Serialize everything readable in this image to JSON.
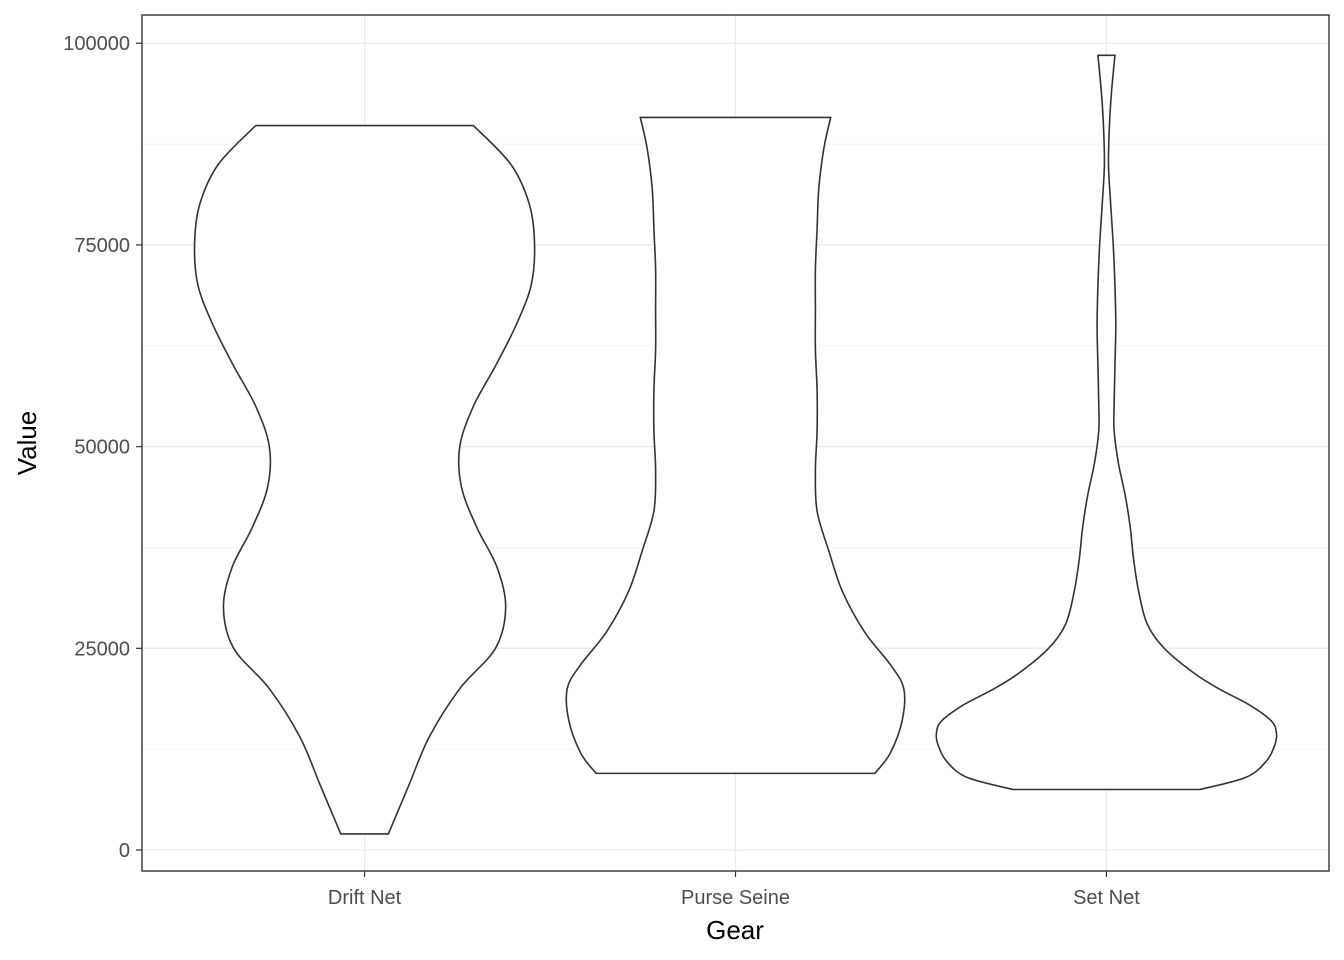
{
  "chart_data": {
    "type": "violin",
    "title": "",
    "xlabel": "Gear",
    "ylabel": "Value",
    "categories": [
      "Drift Net",
      "Purse Seine",
      "Set Net"
    ],
    "ylim": [
      -2600,
      103500
    ],
    "y_ticks": [
      0,
      25000,
      50000,
      75000,
      100000
    ],
    "y_tick_labels": [
      "0",
      "25000",
      "50000",
      "75000",
      "100000"
    ],
    "grid": true,
    "colors": {
      "outline": "#333333",
      "fill": "#ffffff",
      "grid": "#ebebeb",
      "background": "#ffffff"
    },
    "violins": [
      {
        "category": "Drift Net",
        "min": 2000,
        "max": 89800,
        "density_profile": [
          [
            2000,
            0.14
          ],
          [
            8000,
            0.26
          ],
          [
            14000,
            0.38
          ],
          [
            20000,
            0.56
          ],
          [
            25000,
            0.77
          ],
          [
            30000,
            0.83
          ],
          [
            35000,
            0.78
          ],
          [
            40000,
            0.66
          ],
          [
            45000,
            0.57
          ],
          [
            50000,
            0.56
          ],
          [
            55000,
            0.64
          ],
          [
            60000,
            0.77
          ],
          [
            65000,
            0.89
          ],
          [
            70000,
            0.98
          ],
          [
            75000,
            1.0
          ],
          [
            80000,
            0.97
          ],
          [
            85000,
            0.86
          ],
          [
            89800,
            0.64
          ]
        ]
      },
      {
        "category": "Purse Seine",
        "min": 9500,
        "max": 90800,
        "density_profile": [
          [
            9500,
            0.82
          ],
          [
            12000,
            0.91
          ],
          [
            16000,
            0.98
          ],
          [
            20000,
            0.99
          ],
          [
            23000,
            0.91
          ],
          [
            27000,
            0.76
          ],
          [
            32000,
            0.63
          ],
          [
            37000,
            0.55
          ],
          [
            42000,
            0.48
          ],
          [
            47000,
            0.47
          ],
          [
            52000,
            0.48
          ],
          [
            57000,
            0.48
          ],
          [
            62000,
            0.47
          ],
          [
            67000,
            0.47
          ],
          [
            72000,
            0.47
          ],
          [
            77000,
            0.48
          ],
          [
            82000,
            0.49
          ],
          [
            87000,
            0.52
          ],
          [
            90800,
            0.56
          ]
        ]
      },
      {
        "category": "Set Net",
        "min": 7500,
        "max": 98500,
        "density_profile": [
          [
            7500,
            0.55
          ],
          [
            9000,
            0.82
          ],
          [
            11000,
            0.94
          ],
          [
            13000,
            0.99
          ],
          [
            14500,
            1.0
          ],
          [
            16000,
            0.97
          ],
          [
            18000,
            0.84
          ],
          [
            20000,
            0.66
          ],
          [
            22000,
            0.51
          ],
          [
            25000,
            0.34
          ],
          [
            28000,
            0.24
          ],
          [
            32000,
            0.19
          ],
          [
            36000,
            0.16
          ],
          [
            40000,
            0.14
          ],
          [
            44000,
            0.11
          ],
          [
            48000,
            0.07
          ],
          [
            52000,
            0.045
          ],
          [
            55000,
            0.045
          ],
          [
            60000,
            0.05
          ],
          [
            65000,
            0.055
          ],
          [
            70000,
            0.05
          ],
          [
            75000,
            0.04
          ],
          [
            80000,
            0.025
          ],
          [
            85000,
            0.012
          ],
          [
            90000,
            0.018
          ],
          [
            94000,
            0.03
          ],
          [
            98500,
            0.05
          ]
        ]
      }
    ]
  }
}
